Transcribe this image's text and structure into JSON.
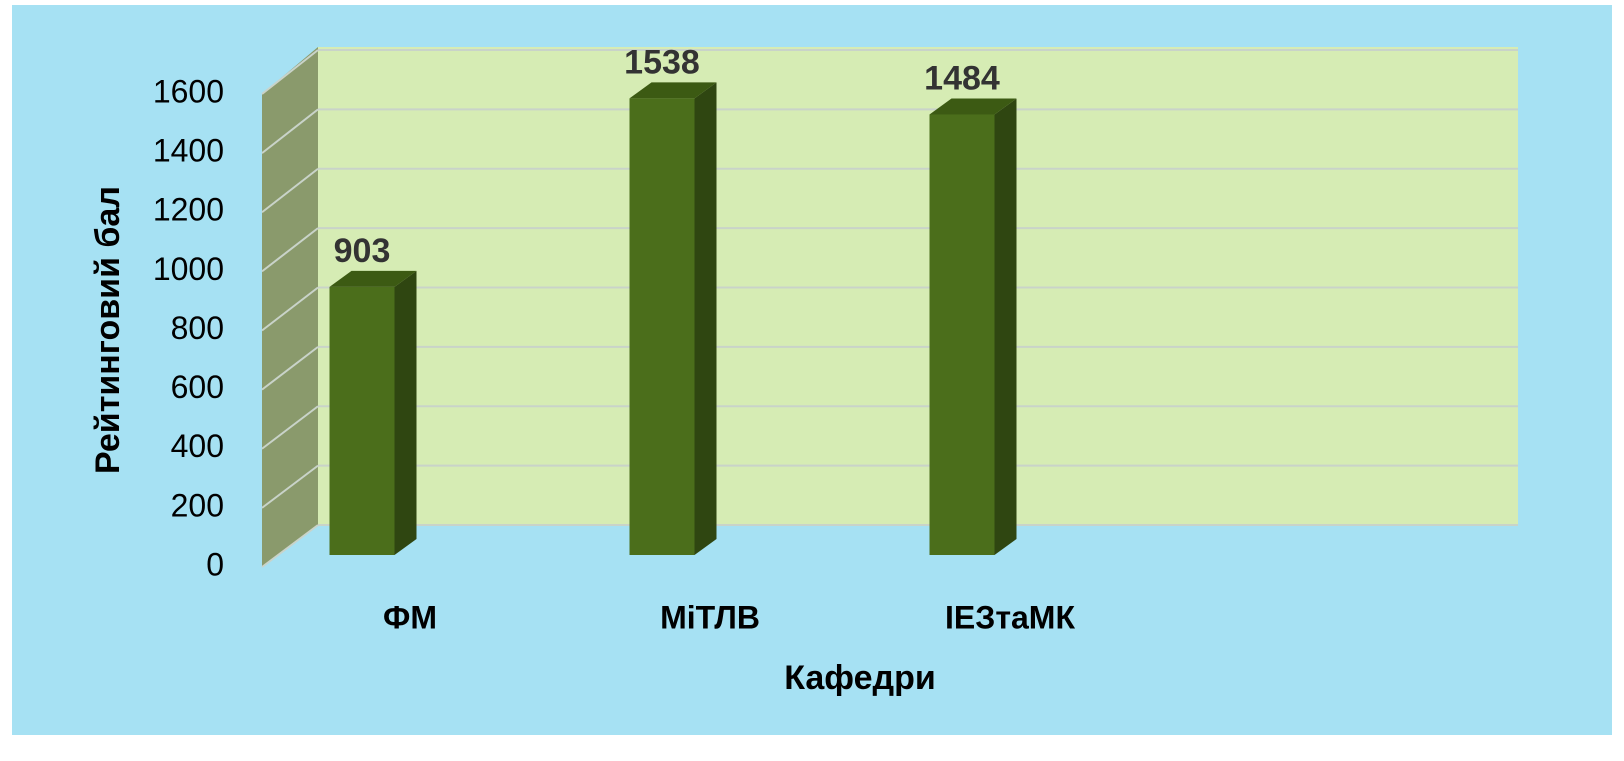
{
  "chart_data": {
    "type": "bar3d",
    "x_label": "Кафедри",
    "y_label": "Рейтинговий бал",
    "categories": [
      "ФМ",
      "МіТЛВ",
      "ІЕЗтаМК"
    ],
    "values": [
      903,
      1538,
      1484
    ],
    "color": "#4b6e1b",
    "ylim": [
      0,
      1600
    ],
    "yticks": [
      0,
      200,
      400,
      600,
      800,
      1000,
      1200,
      1400,
      1600
    ],
    "grid": true
  }
}
